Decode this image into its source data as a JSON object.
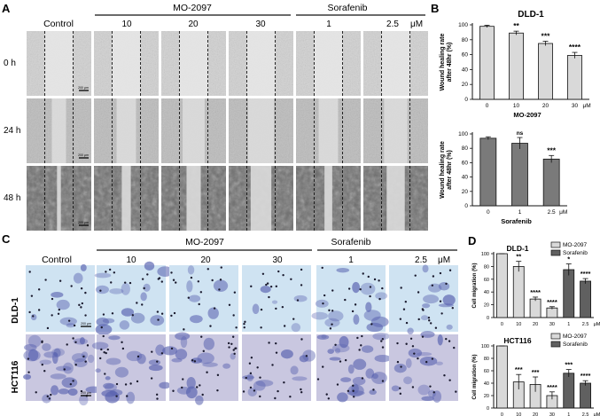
{
  "panels": {
    "A": {
      "letter": "A",
      "col_control": "Control",
      "group_mo": "MO-2097",
      "group_sor": "Sorafenib",
      "conc": [
        "10",
        "20",
        "30",
        "1",
        "2.5"
      ],
      "unit": "μM",
      "rows": [
        "0 h",
        "24 h",
        "48 h"
      ],
      "scalebar": "200 μm"
    },
    "B": {
      "letter": "B"
    },
    "C": {
      "letter": "C",
      "col_control": "Control",
      "group_mo": "MO-2097",
      "group_sor": "Sorafenib",
      "conc": [
        "10",
        "20",
        "30",
        "1",
        "2.5"
      ],
      "unit": "μM",
      "rows": [
        "DLD-1",
        "HCT116"
      ],
      "scalebar": "200 μm"
    },
    "D": {
      "letter": "D"
    }
  },
  "chart_data": [
    {
      "type": "bar",
      "title": "DLD-1",
      "ylabel": "Wound healing rate after 48hr (%)",
      "xlabel": "MO-2097",
      "unit": "μM",
      "categories": [
        "0",
        "10",
        "20",
        "30"
      ],
      "values": [
        98,
        89,
        75,
        59
      ],
      "errors": [
        1.5,
        2.5,
        3,
        4
      ],
      "significance": [
        "",
        "**",
        "***",
        "****"
      ],
      "ylim": [
        0,
        100
      ],
      "yticks": [
        0,
        20,
        40,
        60,
        80,
        100
      ]
    },
    {
      "type": "bar",
      "ylabel": "Wound healing rate after 48hr (%)",
      "xlabel": "Sorafenib",
      "unit": "μM",
      "categories": [
        "0",
        "1",
        "2.5"
      ],
      "values": [
        94,
        87,
        65
      ],
      "errors": [
        2,
        8,
        5
      ],
      "significance": [
        "",
        "ns",
        "***"
      ],
      "ylim": [
        0,
        100
      ],
      "yticks": [
        0,
        20,
        40,
        60,
        80,
        100
      ]
    },
    {
      "type": "bar",
      "title": "DLD-1",
      "ylabel": "Cell migration (%)",
      "unit": "μM",
      "categories": [
        "0",
        "10",
        "20",
        "30",
        "1",
        "2.5"
      ],
      "values": [
        100,
        80,
        29,
        15,
        75,
        57
      ],
      "errors": [
        0,
        8,
        3,
        2,
        9,
        4
      ],
      "series_index": [
        0,
        0,
        0,
        0,
        1,
        1
      ],
      "significance": [
        "",
        "**",
        "****",
        "****",
        "*",
        "****"
      ],
      "legend": [
        "MO-2097",
        "Sorafenib"
      ],
      "ylim": [
        0,
        100
      ],
      "yticks": [
        0,
        20,
        40,
        60,
        80,
        100
      ]
    },
    {
      "type": "bar",
      "title": "HCT116",
      "ylabel": "Cell migration (%)",
      "unit": "μM",
      "categories": [
        "0",
        "10",
        "20",
        "30",
        "1",
        "2.5"
      ],
      "values": [
        100,
        42,
        38,
        20,
        56,
        40
      ],
      "errors": [
        0,
        12,
        12,
        6,
        6,
        4
      ],
      "series_index": [
        0,
        0,
        0,
        0,
        1,
        1
      ],
      "significance": [
        "",
        "***",
        "***",
        "****",
        "***",
        "****"
      ],
      "legend": [
        "MO-2097",
        "Sorafenib"
      ],
      "ylim": [
        0,
        100
      ],
      "yticks": [
        0,
        20,
        40,
        60,
        80,
        100
      ]
    }
  ],
  "colors": {
    "bar_light": "#d9d9d9",
    "bar_dark": "#606060",
    "stain": "#5a63b0"
  }
}
